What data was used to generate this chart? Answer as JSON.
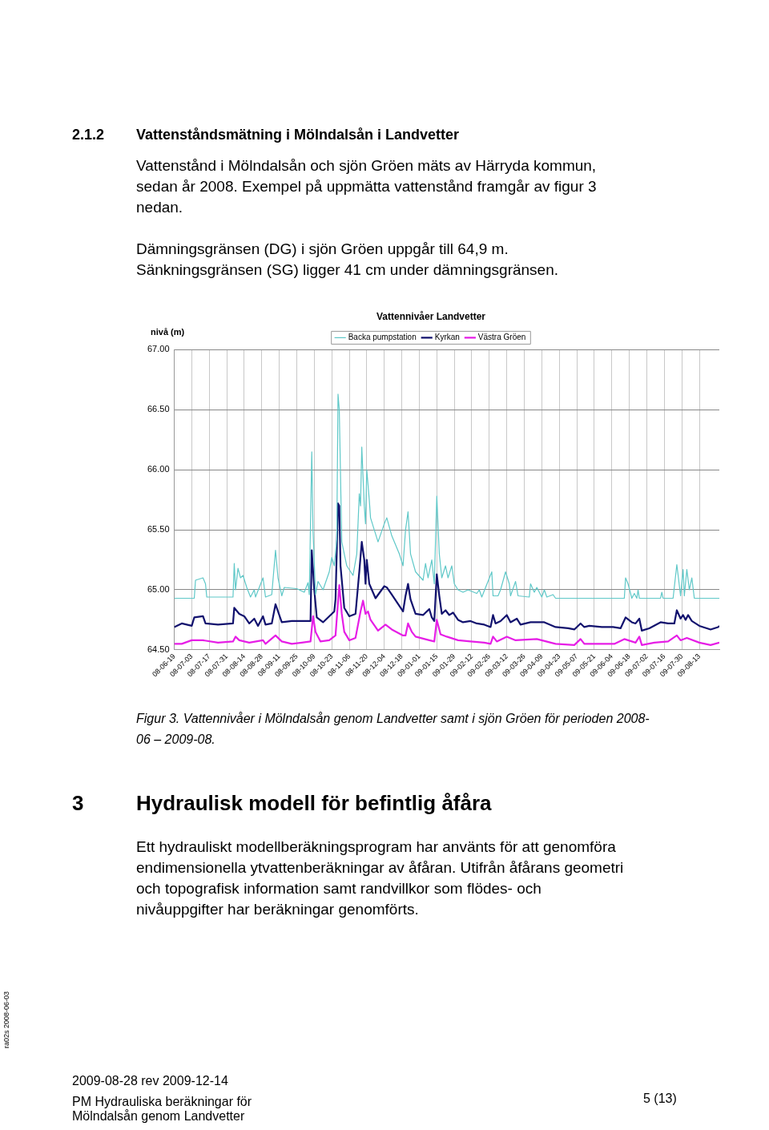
{
  "chart_data": {
    "type": "line",
    "title": "Vattennivåer Landvetter",
    "ylabel": "nivå (m)",
    "annotations": [
      "2.1.2",
      "Vattenståndsmätning i Mölndalsån i Landvetter",
      "Vattenstånd i Mölndalsån och sjön Gröen mäts av Härryda kommun, sedan år 2008. Exempel på uppmätta vattenstånd framgår av figur 3 nedan.",
      "Dämningsgränsen (DG) i sjön Gröen uppgår till 64,9 m. Sänkningsgränsen (SG) ligger 41 cm under dämningsgränsen.",
      "Figur 3.  Vattennivåer i Mölndalsån genom Landvetter samt i sjön Gröen för perioden 2008-06 – 2009-08.",
      "3",
      "Hydraulisk modell för befintlig åfåra",
      "Ett hydrauliskt modellberäkningsprogram har använts för att genomföra endimensionella ytvattenberäkningar av åfåran. Utifrån åfårans geometri och topografisk information samt randvillkor som flödes- och nivåuppgifter har beräkningar genomförts.",
      "2009-08-28 rev 2009-12-14",
      "PM Hydrauliska beräkningar för Mölndalsån genom Landvetter",
      "5 (13)",
      "ra02s 2008-06-03"
    ],
    "xlim": [
      "2008-06-19",
      "2009-08-29"
    ],
    "xticks": [
      {
        "value": "2008-06-19",
        "label": "08-06-19"
      },
      {
        "value": "2008-07-03",
        "label": "08-07-03"
      },
      {
        "value": "2008-07-17",
        "label": "08-07-17"
      },
      {
        "value": "2008-07-31",
        "label": "08-07-31"
      },
      {
        "value": "2008-08-14",
        "label": "08-08-14"
      },
      {
        "value": "2008-08-28",
        "label": "08-08-28"
      },
      {
        "value": "2008-09-11",
        "label": "08-09-11"
      },
      {
        "value": "2008-09-25",
        "label": "08-09-25"
      },
      {
        "value": "2008-10-09",
        "label": "08-10-09"
      },
      {
        "value": "2008-10-23",
        "label": "08-10-23"
      },
      {
        "value": "2008-11-06",
        "label": "08-11-06"
      },
      {
        "value": "2008-11-20",
        "label": "08-11-20"
      },
      {
        "value": "2008-12-04",
        "label": "08-12-04"
      },
      {
        "value": "2008-12-18",
        "label": "08-12-18"
      },
      {
        "value": "2009-01-01",
        "label": "09-01-01"
      },
      {
        "value": "2009-01-15",
        "label": "09-01-15"
      },
      {
        "value": "2009-01-29",
        "label": "09-01-29"
      },
      {
        "value": "2009-02-12",
        "label": "09-02-12"
      },
      {
        "value": "2009-02-26",
        "label": "09-02-26"
      },
      {
        "value": "2009-03-12",
        "label": "09-03-12"
      },
      {
        "value": "2009-03-26",
        "label": "09-03-26"
      },
      {
        "value": "2009-04-09",
        "label": "09-04-09"
      },
      {
        "value": "2009-04-23",
        "label": "09-04-23"
      },
      {
        "value": "2009-05-07",
        "label": "09-05-07"
      },
      {
        "value": "2009-05-21",
        "label": "09-05-21"
      },
      {
        "value": "2009-06-04",
        "label": "09-06-04"
      },
      {
        "value": "2009-06-18",
        "label": "09-06-18"
      },
      {
        "value": "2009-07-02",
        "label": "09-07-02"
      },
      {
        "value": "2009-07-16",
        "label": "09-07-16"
      },
      {
        "value": "2009-07-30",
        "label": "09-07-30"
      },
      {
        "value": "2009-08-13",
        "label": "09-08-13"
      }
    ],
    "ylim": [
      64.5,
      67
    ],
    "yticks": [
      {
        "value": 64.5,
        "label": "64.50"
      },
      {
        "value": 65,
        "label": "65.00"
      },
      {
        "value": 65.5,
        "label": "65.50"
      },
      {
        "value": 66,
        "label": "66.00"
      },
      {
        "value": 66.5,
        "label": "66.50"
      },
      {
        "value": 67,
        "label": "67.00"
      }
    ],
    "grid": true,
    "legend": "top",
    "marker": "none",
    "line_style": "solid",
    "series": [
      {
        "name": "Backa pumpstation",
        "color": "#5fc8c8",
        "x": [
          "2008-06-19",
          "2008-07-05",
          "2008-07-06",
          "2008-07-12",
          "2008-07-14",
          "2008-07-15",
          "2008-08-05",
          "2008-08-06",
          "2008-08-07",
          "2008-08-09",
          "2008-08-11",
          "2008-08-13",
          "2008-08-16",
          "2008-08-19",
          "2008-08-22",
          "2008-08-23",
          "2008-08-29",
          "2008-08-31",
          "2008-09-05",
          "2008-09-08",
          "2008-09-10",
          "2008-09-13",
          "2008-09-15",
          "2008-09-25",
          "2008-10-01",
          "2008-10-04",
          "2008-10-05",
          "2008-10-07",
          "2008-10-08",
          "2008-10-10",
          "2008-10-12",
          "2008-10-16",
          "2008-10-21",
          "2008-10-23",
          "2008-10-25",
          "2008-10-27",
          "2008-10-28",
          "2008-10-29",
          "2008-10-31",
          "2008-11-04",
          "2008-11-09",
          "2008-11-12",
          "2008-11-14",
          "2008-11-15",
          "2008-11-16",
          "2008-11-18",
          "2008-11-19",
          "2008-11-20",
          "2008-11-22",
          "2008-11-23",
          "2008-11-29",
          "2008-12-04",
          "2008-12-06",
          "2008-12-10",
          "2008-12-16",
          "2008-12-19",
          "2008-12-21",
          "2008-12-23",
          "2008-12-25",
          "2008-12-29",
          "2009-01-04",
          "2009-01-06",
          "2009-01-08",
          "2009-01-11",
          "2009-01-13",
          "2009-01-15",
          "2009-01-17",
          "2009-01-19",
          "2009-01-22",
          "2009-01-24",
          "2009-01-27",
          "2009-01-29",
          "2009-02-01",
          "2009-02-05",
          "2009-02-09",
          "2009-02-16",
          "2009-02-18",
          "2009-02-20",
          "2009-02-28",
          "2009-03-01",
          "2009-03-05",
          "2009-03-07",
          "2009-03-11",
          "2009-03-14",
          "2009-03-15",
          "2009-03-19",
          "2009-03-21",
          "2009-03-30",
          "2009-03-31",
          "2009-04-03",
          "2009-04-05",
          "2009-04-09",
          "2009-04-11",
          "2009-04-13",
          "2009-04-18",
          "2009-04-20",
          "2009-06-14",
          "2009-06-15",
          "2009-06-17",
          "2009-06-20",
          "2009-06-22",
          "2009-06-24",
          "2009-06-25",
          "2009-06-26",
          "2009-07-13",
          "2009-07-14",
          "2009-07-15",
          "2009-07-23",
          "2009-07-26",
          "2009-07-29",
          "2009-07-31",
          "2009-08-01",
          "2009-08-03",
          "2009-08-05",
          "2009-08-07",
          "2009-08-09",
          "2009-08-29"
        ],
        "values": [
          64.93,
          64.93,
          65.08,
          65.1,
          65.05,
          64.94,
          64.94,
          65.22,
          65.0,
          65.18,
          65.1,
          65.12,
          65.02,
          64.94,
          65.0,
          64.94,
          65.1,
          64.94,
          64.96,
          65.33,
          65.1,
          64.95,
          65.02,
          65.01,
          64.98,
          65.06,
          64.96,
          66.15,
          65.5,
          64.96,
          65.07,
          65.0,
          65.15,
          65.27,
          65.2,
          65.42,
          66.63,
          66.5,
          65.4,
          65.2,
          65.12,
          65.3,
          65.8,
          65.7,
          66.19,
          65.7,
          65.55,
          66.0,
          65.75,
          65.6,
          65.4,
          65.55,
          65.6,
          65.45,
          65.3,
          65.2,
          65.5,
          65.65,
          65.3,
          65.15,
          65.08,
          65.22,
          65.1,
          65.25,
          65.05,
          65.78,
          65.3,
          65.1,
          65.2,
          65.1,
          65.2,
          65.05,
          65.0,
          64.98,
          65.0,
          64.97,
          65.0,
          64.94,
          65.15,
          64.95,
          64.95,
          65.0,
          65.15,
          65.05,
          64.95,
          65.07,
          64.95,
          64.94,
          65.05,
          64.98,
          65.02,
          64.94,
          65.0,
          64.94,
          64.96,
          64.93,
          64.93,
          65.1,
          65.05,
          64.93,
          64.97,
          64.93,
          65.0,
          64.93,
          64.93,
          64.98,
          64.93,
          64.93,
          65.21,
          64.95,
          65.17,
          64.95,
          65.17,
          65.0,
          65.1,
          64.93,
          64.93
        ]
      },
      {
        "name": "Kyrkan",
        "color": "#12126e",
        "x": [
          "2008-06-19",
          "2008-06-25",
          "2008-07-03",
          "2008-07-05",
          "2008-07-12",
          "2008-07-14",
          "2008-07-24",
          "2008-08-05",
          "2008-08-06",
          "2008-08-10",
          "2008-08-14",
          "2008-08-18",
          "2008-08-22",
          "2008-08-25",
          "2008-08-29",
          "2008-08-31",
          "2008-09-05",
          "2008-09-08",
          "2008-09-13",
          "2008-09-21",
          "2008-09-29",
          "2008-10-06",
          "2008-10-07",
          "2008-10-09",
          "2008-10-11",
          "2008-10-16",
          "2008-10-21",
          "2008-10-25",
          "2008-10-26",
          "2008-10-28",
          "2008-10-29",
          "2008-10-30",
          "2008-11-02",
          "2008-11-06",
          "2008-11-11",
          "2008-11-14",
          "2008-11-16",
          "2008-11-18",
          "2008-11-19",
          "2008-11-20",
          "2008-11-22",
          "2008-11-27",
          "2008-12-04",
          "2008-12-06",
          "2008-12-10",
          "2008-12-19",
          "2008-12-21",
          "2008-12-23",
          "2008-12-25",
          "2008-12-29",
          "2009-01-04",
          "2009-01-09",
          "2009-01-11",
          "2009-01-13",
          "2009-01-15",
          "2009-01-17",
          "2009-01-19",
          "2009-01-22",
          "2009-01-25",
          "2009-01-28",
          "2009-02-01",
          "2009-02-05",
          "2009-02-11",
          "2009-02-16",
          "2009-02-22",
          "2009-02-27",
          "2009-03-01",
          "2009-03-03",
          "2009-03-07",
          "2009-03-12",
          "2009-03-15",
          "2009-03-20",
          "2009-03-23",
          "2009-03-31",
          "2009-04-05",
          "2009-04-11",
          "2009-04-20",
          "2009-04-30",
          "2009-05-05",
          "2009-05-10",
          "2009-05-13",
          "2009-05-17",
          "2009-05-27",
          "2009-06-05",
          "2009-06-11",
          "2009-06-15",
          "2009-06-20",
          "2009-06-23",
          "2009-06-26",
          "2009-06-28",
          "2009-07-04",
          "2009-07-13",
          "2009-07-19",
          "2009-07-24",
          "2009-07-26",
          "2009-07-29",
          "2009-07-31",
          "2009-08-02",
          "2009-08-04",
          "2009-08-07",
          "2009-08-13",
          "2009-08-22",
          "2009-08-28",
          "2009-08-29"
        ],
        "values": [
          64.69,
          64.72,
          64.7,
          64.77,
          64.78,
          64.72,
          64.71,
          64.72,
          64.85,
          64.8,
          64.78,
          64.72,
          64.76,
          64.7,
          64.78,
          64.71,
          64.72,
          64.88,
          64.73,
          64.74,
          64.74,
          64.74,
          65.33,
          65.0,
          64.77,
          64.73,
          64.78,
          64.82,
          64.92,
          65.72,
          65.7,
          65.2,
          64.85,
          64.78,
          64.8,
          65.15,
          65.4,
          65.25,
          65.05,
          65.25,
          65.05,
          64.93,
          65.03,
          65.02,
          64.96,
          64.82,
          64.95,
          65.05,
          64.92,
          64.8,
          64.79,
          64.84,
          64.77,
          64.74,
          65.13,
          64.95,
          64.8,
          64.83,
          64.79,
          64.81,
          64.75,
          64.73,
          64.74,
          64.72,
          64.71,
          64.69,
          64.79,
          64.72,
          64.74,
          64.79,
          64.73,
          64.76,
          64.71,
          64.73,
          64.73,
          64.73,
          64.69,
          64.68,
          64.67,
          64.72,
          64.69,
          64.7,
          64.69,
          64.69,
          64.68,
          64.77,
          64.73,
          64.72,
          64.76,
          64.66,
          64.68,
          64.73,
          64.72,
          64.72,
          64.83,
          64.76,
          64.79,
          64.75,
          64.79,
          64.74,
          64.7,
          64.67,
          64.69,
          64.7
        ]
      },
      {
        "name": "Västra Gröen",
        "color": "#e61ee6",
        "x": [
          "2008-06-19",
          "2008-06-25",
          "2008-07-03",
          "2008-07-12",
          "2008-07-24",
          "2008-08-05",
          "2008-08-07",
          "2008-08-10",
          "2008-08-18",
          "2008-08-29",
          "2008-08-31",
          "2008-09-08",
          "2008-09-13",
          "2008-09-21",
          "2008-09-29",
          "2008-10-06",
          "2008-10-08",
          "2008-10-10",
          "2008-10-14",
          "2008-10-21",
          "2008-10-26",
          "2008-10-29",
          "2008-10-31",
          "2008-11-02",
          "2008-11-06",
          "2008-11-11",
          "2008-11-15",
          "2008-11-17",
          "2008-11-19",
          "2008-11-21",
          "2008-11-23",
          "2008-11-29",
          "2008-12-05",
          "2008-12-10",
          "2008-12-19",
          "2008-12-21",
          "2008-12-23",
          "2008-12-26",
          "2008-12-29",
          "2009-01-09",
          "2009-01-13",
          "2009-01-15",
          "2009-01-18",
          "2009-01-23",
          "2009-02-01",
          "2009-02-11",
          "2009-02-22",
          "2009-02-27",
          "2009-03-01",
          "2009-03-04",
          "2009-03-12",
          "2009-03-19",
          "2009-04-05",
          "2009-04-20",
          "2009-05-05",
          "2009-05-10",
          "2009-05-13",
          "2009-05-27",
          "2009-06-06",
          "2009-06-14",
          "2009-06-23",
          "2009-06-26",
          "2009-06-28",
          "2009-07-08",
          "2009-07-19",
          "2009-07-26",
          "2009-07-29",
          "2009-08-03",
          "2009-08-13",
          "2009-08-22",
          "2009-08-29"
        ],
        "values": [
          64.55,
          64.55,
          64.58,
          64.58,
          64.56,
          64.57,
          64.61,
          64.58,
          64.56,
          64.58,
          64.55,
          64.62,
          64.57,
          64.55,
          64.56,
          64.57,
          64.78,
          64.65,
          64.57,
          64.58,
          64.62,
          65.04,
          64.8,
          64.65,
          64.58,
          64.6,
          64.82,
          64.91,
          64.8,
          64.82,
          64.75,
          64.66,
          64.71,
          64.67,
          64.62,
          64.62,
          64.72,
          64.65,
          64.61,
          64.58,
          64.57,
          64.75,
          64.63,
          64.61,
          64.58,
          64.57,
          64.56,
          64.55,
          64.61,
          64.57,
          64.61,
          64.58,
          64.59,
          64.55,
          64.54,
          64.59,
          64.55,
          64.55,
          64.55,
          64.59,
          64.56,
          64.61,
          64.54,
          64.56,
          64.57,
          64.62,
          64.58,
          64.6,
          64.56,
          64.54,
          64.56
        ]
      }
    ]
  }
}
